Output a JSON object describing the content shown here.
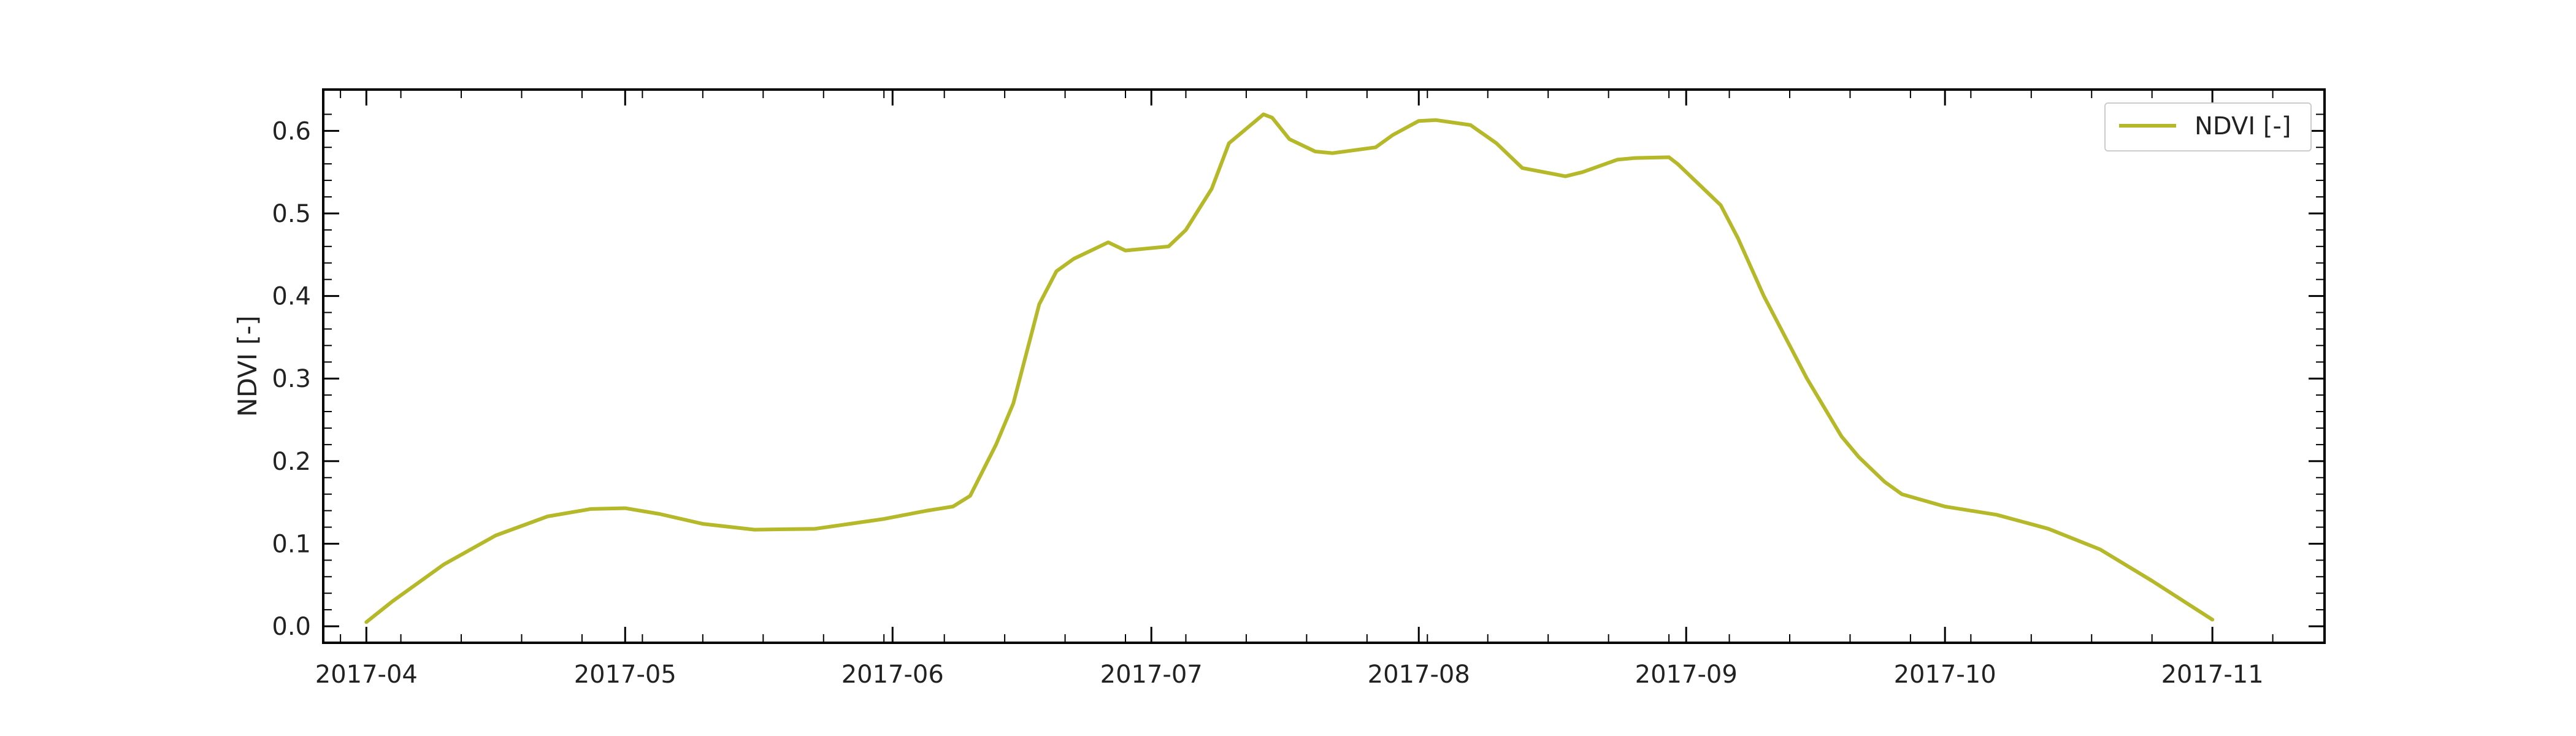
{
  "chart_data": {
    "type": "line",
    "xlabel": "",
    "ylabel": "NDVI [-]",
    "xlim": [
      "2017-03-27",
      "2017-11-14"
    ],
    "ylim": [
      -0.02,
      0.65
    ],
    "x_ticks": [
      "2017-04-01",
      "2017-05-01",
      "2017-06-01",
      "2017-07-01",
      "2017-08-01",
      "2017-09-01",
      "2017-10-01",
      "2017-11-01"
    ],
    "x_tick_labels": [
      "2017-04",
      "2017-05",
      "2017-06",
      "2017-07",
      "2017-08",
      "2017-09",
      "2017-10",
      "2017-11"
    ],
    "y_ticks": [
      0.0,
      0.1,
      0.2,
      0.3,
      0.4,
      0.5,
      0.6
    ],
    "y_tick_labels": [
      "0.0",
      "0.1",
      "0.2",
      "0.3",
      "0.4",
      "0.5",
      "0.6"
    ],
    "grid": false,
    "legend_position": "top-right",
    "color": "#b5b829",
    "series": [
      {
        "name": "NDVI [-]",
        "x": [
          "2017-04-01",
          "2017-04-04",
          "2017-04-10",
          "2017-04-16",
          "2017-04-22",
          "2017-04-27",
          "2017-05-01",
          "2017-05-05",
          "2017-05-10",
          "2017-05-16",
          "2017-05-23",
          "2017-05-31",
          "2017-06-05",
          "2017-06-08",
          "2017-06-10",
          "2017-06-13",
          "2017-06-15",
          "2017-06-18",
          "2017-06-20",
          "2017-06-22",
          "2017-06-26",
          "2017-06-27",
          "2017-06-28",
          "2017-07-03",
          "2017-07-05",
          "2017-07-08",
          "2017-07-10",
          "2017-07-14",
          "2017-07-15",
          "2017-07-17",
          "2017-07-20",
          "2017-07-22",
          "2017-07-27",
          "2017-07-29",
          "2017-08-01",
          "2017-08-03",
          "2017-08-07",
          "2017-08-10",
          "2017-08-13",
          "2017-08-18",
          "2017-08-20",
          "2017-08-24",
          "2017-08-26",
          "2017-08-30",
          "2017-08-31",
          "2017-09-05",
          "2017-09-07",
          "2017-09-10",
          "2017-09-15",
          "2017-09-19",
          "2017-09-21",
          "2017-09-24",
          "2017-09-26",
          "2017-10-01",
          "2017-10-07",
          "2017-10-13",
          "2017-10-19",
          "2017-10-25",
          "2017-11-01"
        ],
        "values": [
          0.005,
          0.03,
          0.075,
          0.11,
          0.133,
          0.142,
          0.143,
          0.136,
          0.124,
          0.117,
          0.118,
          0.13,
          0.14,
          0.145,
          0.158,
          0.22,
          0.27,
          0.39,
          0.43,
          0.445,
          0.465,
          0.46,
          0.455,
          0.46,
          0.48,
          0.53,
          0.585,
          0.62,
          0.616,
          0.59,
          0.575,
          0.573,
          0.58,
          0.595,
          0.612,
          0.613,
          0.607,
          0.585,
          0.555,
          0.545,
          0.55,
          0.565,
          0.567,
          0.568,
          0.56,
          0.51,
          0.47,
          0.4,
          0.3,
          0.23,
          0.205,
          0.175,
          0.16,
          0.145,
          0.135,
          0.118,
          0.093,
          0.055,
          0.008
        ]
      }
    ]
  }
}
